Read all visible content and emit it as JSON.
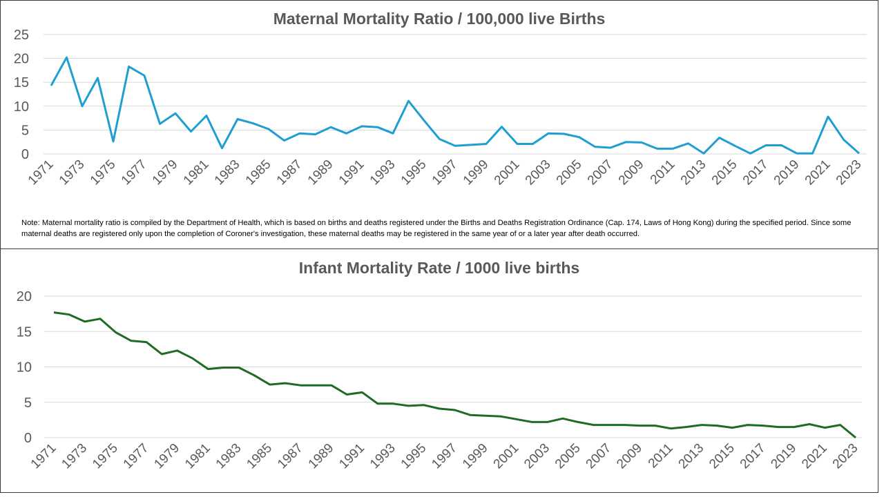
{
  "chart_data": [
    {
      "type": "line",
      "title": "Maternal Mortality Ratio / 100,000 live Births",
      "xlabel": "",
      "ylabel": "",
      "ylim": [
        0,
        25
      ],
      "yticks": [
        "0",
        "5",
        "10",
        "15",
        "20",
        "25"
      ],
      "grid": true,
      "color": "#1F9ED1",
      "x": [
        1971,
        1972,
        1973,
        1974,
        1975,
        1976,
        1977,
        1978,
        1979,
        1980,
        1981,
        1982,
        1983,
        1984,
        1985,
        1986,
        1987,
        1988,
        1989,
        1990,
        1991,
        1992,
        1993,
        1994,
        1995,
        1996,
        1997,
        1998,
        1999,
        2000,
        2001,
        2002,
        2003,
        2004,
        2005,
        2006,
        2007,
        2008,
        2009,
        2010,
        2011,
        2012,
        2013,
        2014,
        2015,
        2016,
        2017,
        2018,
        2019,
        2020,
        2021,
        2022,
        2023
      ],
      "xtick_labels": [
        "1971",
        "1973",
        "1975",
        "1977",
        "1979",
        "1981",
        "1983",
        "1985",
        "1987",
        "1989",
        "1991",
        "1993",
        "1995",
        "1997",
        "1999",
        "2001",
        "2003",
        "2005",
        "2007",
        "2009",
        "2011",
        "2013",
        "2015",
        "2017",
        "2019",
        "2021",
        "2023"
      ],
      "values": [
        14.3,
        20.2,
        10.0,
        15.9,
        2.6,
        18.3,
        16.4,
        6.3,
        8.5,
        4.7,
        8.0,
        1.2,
        7.3,
        6.4,
        5.2,
        2.8,
        4.3,
        4.1,
        5.6,
        4.3,
        5.8,
        5.6,
        4.3,
        11.1,
        7.0,
        3.1,
        1.7,
        1.9,
        2.1,
        5.7,
        2.1,
        2.1,
        4.3,
        4.2,
        3.5,
        1.5,
        1.3,
        2.5,
        2.4,
        1.1,
        1.1,
        2.2,
        0.1,
        3.4,
        1.7,
        0.1,
        1.8,
        1.8,
        0.1,
        0.1,
        7.8,
        3.0,
        0.1
      ],
      "note": "Note:  Maternal mortality ratio is compiled by the  Department  of Health, which is based on births and deaths registered under the  Births and Deaths Registration Ordinance (Cap. 174, Laws of Hong Kong) during the  specified period.  Since some maternal deaths are registered only upon the  completion of Coroner's investigation, these maternal deaths may be registered in the same year of or a later year  after death occurred."
    },
    {
      "type": "line",
      "title": "Infant Mortality Rate / 1000 live births",
      "xlabel": "",
      "ylabel": "",
      "ylim": [
        0,
        20
      ],
      "yticks": [
        "0",
        "5",
        "10",
        "15",
        "20"
      ],
      "grid": true,
      "color": "#1E6B23",
      "x": [
        1971,
        1972,
        1973,
        1974,
        1975,
        1976,
        1977,
        1978,
        1979,
        1980,
        1981,
        1982,
        1983,
        1984,
        1985,
        1986,
        1987,
        1988,
        1989,
        1990,
        1991,
        1992,
        1993,
        1994,
        1995,
        1996,
        1997,
        1998,
        1999,
        2000,
        2001,
        2002,
        2003,
        2004,
        2005,
        2006,
        2007,
        2008,
        2009,
        2010,
        2011,
        2012,
        2013,
        2014,
        2015,
        2016,
        2017,
        2018,
        2019,
        2020,
        2021,
        2022,
        2023
      ],
      "xtick_labels": [
        "1971",
        "1973",
        "1975",
        "1977",
        "1979",
        "1981",
        "1983",
        "1985",
        "1987",
        "1989",
        "1991",
        "1993",
        "1995",
        "1997",
        "1999",
        "2001",
        "2003",
        "2005",
        "2007",
        "2009",
        "2011",
        "2013",
        "2015",
        "2017",
        "2019",
        "2021",
        "2023"
      ],
      "values": [
        17.7,
        17.4,
        16.4,
        16.8,
        14.9,
        13.7,
        13.5,
        11.8,
        12.3,
        11.2,
        9.7,
        9.9,
        9.9,
        8.8,
        7.5,
        7.7,
        7.4,
        7.4,
        7.4,
        6.1,
        6.4,
        4.8,
        4.8,
        4.5,
        4.6,
        4.1,
        3.9,
        3.2,
        3.1,
        3.0,
        2.6,
        2.2,
        2.2,
        2.7,
        2.2,
        1.8,
        1.8,
        1.8,
        1.7,
        1.7,
        1.3,
        1.5,
        1.8,
        1.7,
        1.4,
        1.8,
        1.7,
        1.5,
        1.5,
        1.9,
        1.4,
        1.8,
        0.0
      ]
    }
  ]
}
